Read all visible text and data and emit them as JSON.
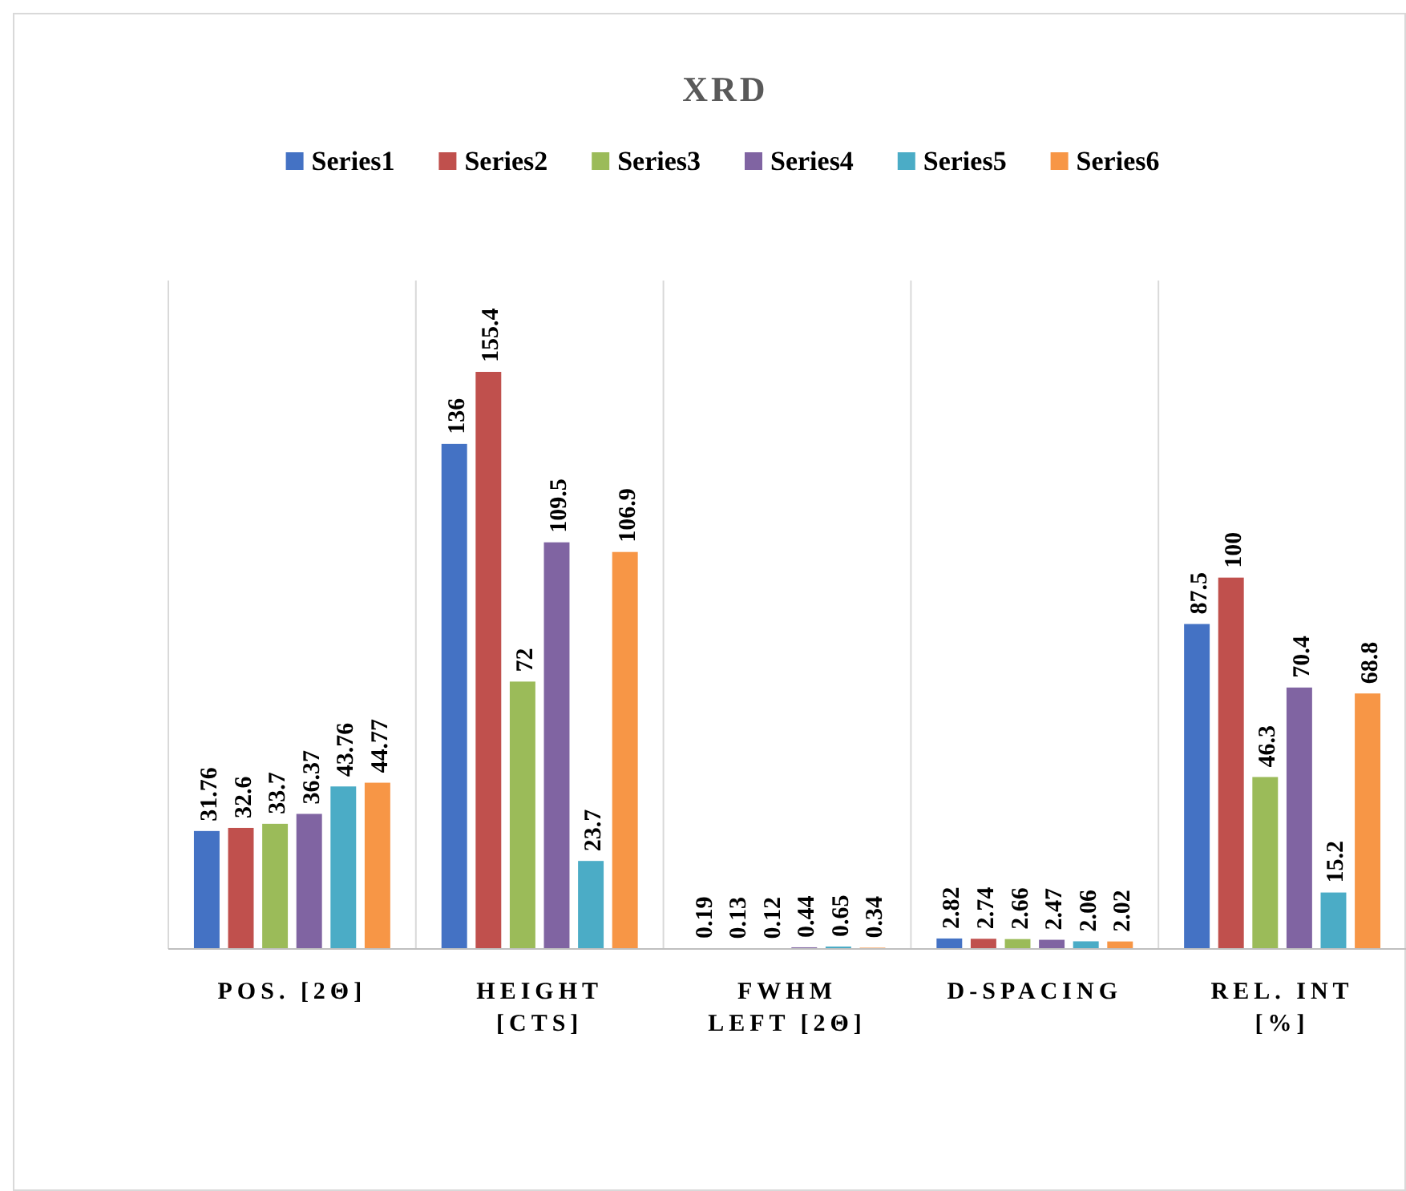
{
  "chart_data": {
    "type": "bar",
    "title": "XRD",
    "categories": [
      "POS. [2Θ]",
      "HEIGHT\n[CTS]",
      "FWHM\nLEFT [2Θ]",
      "D-SPACING",
      "REL. INT\n[%]"
    ],
    "series": [
      {
        "name": "Series1",
        "color": "#4472c4",
        "values": [
          31.76,
          136,
          0.19,
          2.82,
          87.5
        ]
      },
      {
        "name": "Series2",
        "color": "#c0504d",
        "values": [
          32.6,
          155.4,
          0.13,
          2.74,
          100
        ]
      },
      {
        "name": "Series3",
        "color": "#9bbb59",
        "values": [
          33.7,
          72,
          0.12,
          2.66,
          46.3
        ]
      },
      {
        "name": "Series4",
        "color": "#8064a2",
        "values": [
          36.37,
          109.5,
          0.44,
          2.47,
          70.4
        ]
      },
      {
        "name": "Series5",
        "color": "#4bacc6",
        "values": [
          43.76,
          23.7,
          0.65,
          2.06,
          15.2
        ]
      },
      {
        "name": "Series6",
        "color": "#f79646",
        "values": [
          44.77,
          106.9,
          0.34,
          2.02,
          68.8
        ]
      }
    ],
    "ylim": [
      0,
      180
    ],
    "data_labels": true,
    "grid": "x",
    "legend": "top",
    "tick_labels": "x"
  }
}
